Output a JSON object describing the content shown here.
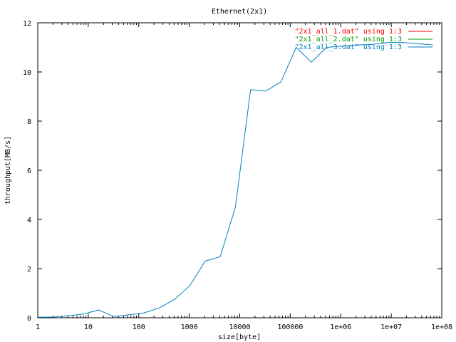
{
  "chart_data": {
    "type": "line",
    "title": "Ethernet(2x1)",
    "xlabel": "size[byte]",
    "ylabel": "throughput[MB/s]",
    "xscale": "log",
    "xlim": [
      1,
      100000000
    ],
    "ylim": [
      0,
      12
    ],
    "grid": false,
    "legend_position": "top-right",
    "x_ticks": [
      {
        "value": 1,
        "label": "1"
      },
      {
        "value": 10,
        "label": "10"
      },
      {
        "value": 100,
        "label": "100"
      },
      {
        "value": 1000,
        "label": "1000"
      },
      {
        "value": 10000,
        "label": "10000"
      },
      {
        "value": 100000,
        "label": "100000"
      },
      {
        "value": 1000000,
        "label": "1e+06"
      },
      {
        "value": 10000000,
        "label": "1e+07"
      },
      {
        "value": 100000000,
        "label": "1e+08"
      }
    ],
    "y_ticks": [
      {
        "value": 0,
        "label": "0"
      },
      {
        "value": 2,
        "label": "2"
      },
      {
        "value": 4,
        "label": "4"
      },
      {
        "value": 6,
        "label": "6"
      },
      {
        "value": 8,
        "label": "8"
      },
      {
        "value": 10,
        "label": "10"
      },
      {
        "value": 12,
        "label": "12"
      }
    ],
    "series": [
      {
        "name": "\"2x1_all_1.dat\" using 1:3",
        "color": "#ff0000",
        "x": [],
        "y": []
      },
      {
        "name": "\"2x1_all_2.dat\" using 1:3",
        "color": "#00a000",
        "x": [],
        "y": []
      },
      {
        "name": "\"2x1_all_3.dat\" using 1:3",
        "color": "#0080c0",
        "x": [
          1,
          2,
          4,
          8,
          16,
          32,
          64,
          128,
          256,
          512,
          1024,
          2048,
          4096,
          8192,
          16384,
          32768,
          65536,
          131072,
          262144,
          524288,
          1048576,
          2097152,
          4194304,
          8388608,
          16777216,
          33554432,
          67108864
        ],
        "y": [
          0.02,
          0.03,
          0.08,
          0.15,
          0.32,
          0.05,
          0.12,
          0.2,
          0.4,
          0.75,
          1.3,
          2.3,
          2.48,
          4.5,
          9.28,
          9.22,
          9.6,
          11.0,
          10.4,
          11.0,
          11.05,
          11.1,
          11.12,
          11.2,
          11.2,
          11.15,
          11.1
        ]
      }
    ]
  }
}
